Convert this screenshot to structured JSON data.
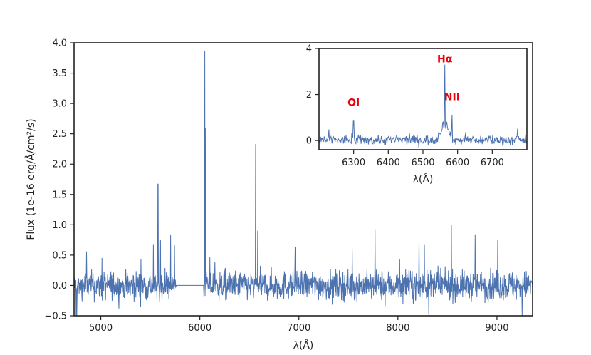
{
  "chart_data": [
    {
      "type": "line",
      "xlabel": "λ(Å)",
      "ylabel": "Flux (1e-16 erg/Å/cm²/s)",
      "xlim": [
        4730,
        9360
      ],
      "ylim": [
        -0.5,
        4.0
      ],
      "xticks": [
        "5000",
        "6000",
        "7000",
        "8000",
        "9000"
      ],
      "xtick_values": [
        5000,
        6000,
        7000,
        8000,
        9000
      ],
      "yticks": [
        "−0.5",
        "0.0",
        "0.5",
        "1.0",
        "1.5",
        "2.0",
        "2.5",
        "3.0",
        "3.5",
        "4.0"
      ],
      "ytick_values": [
        -0.5,
        0.0,
        0.5,
        1.0,
        1.5,
        2.0,
        2.5,
        3.0,
        3.5,
        4.0
      ],
      "line_color": "#4c72b0",
      "features": [
        {
          "x": 5577,
          "y": 1.67
        },
        {
          "x": 6050,
          "y": 3.86
        },
        {
          "x": 6056,
          "y": 2.6
        },
        {
          "x": 6563,
          "y": 2.33
        },
        {
          "x": 6584,
          "y": 0.9
        }
      ],
      "gap": {
        "x_start": 5760,
        "x_end": 6040,
        "y": 0.0
      },
      "noise_amplitude": 0.45
    },
    {
      "type": "line",
      "inset": true,
      "xlabel": "λ(Å)",
      "xlim": [
        6200,
        6800
      ],
      "ylim": [
        -0.4,
        4.0
      ],
      "xticks": [
        "6300",
        "6400",
        "6500",
        "6600",
        "6700"
      ],
      "xtick_values": [
        6300,
        6400,
        6500,
        6600,
        6700
      ],
      "yticks": [
        "0",
        "2",
        "4"
      ],
      "ytick_values": [
        0,
        2,
        4
      ],
      "line_color": "#4c72b0",
      "annotations": [
        {
          "label": "OI",
          "x": 6300,
          "y": 1.5,
          "color": "#e8000b"
        },
        {
          "label": "Hα",
          "x": 6563,
          "y": 3.4,
          "color": "#e8000b"
        },
        {
          "label": "NII",
          "x": 6584,
          "y": 1.75,
          "color": "#e8000b"
        }
      ],
      "features": [
        {
          "x": 6300,
          "y": 0.85
        },
        {
          "x": 6563,
          "y": 3.3
        },
        {
          "x": 6584,
          "y": 1.1
        }
      ]
    }
  ]
}
